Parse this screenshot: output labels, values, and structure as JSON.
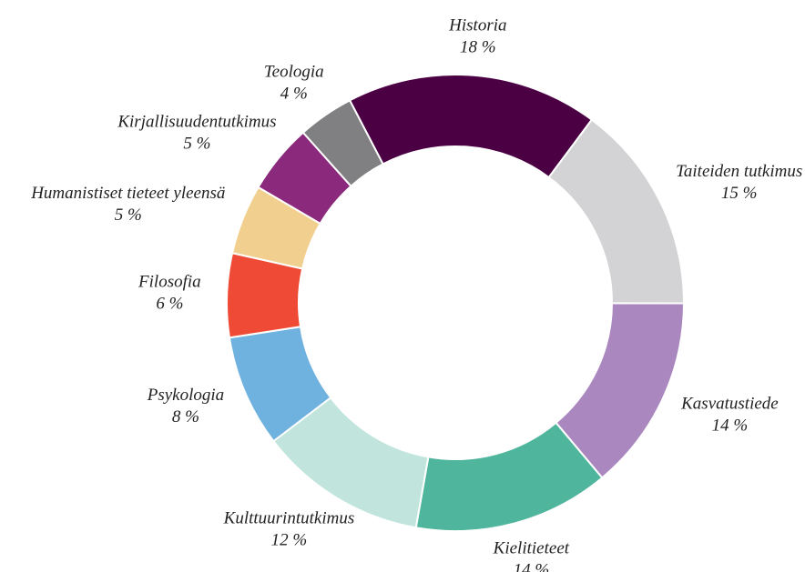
{
  "chart_data": {
    "type": "donut",
    "categories": [
      "Historia",
      "Taiteiden tutkimus",
      "Kasvatustiede",
      "Kielitieteet",
      "Kulttuurintutkimus",
      "Psykologia",
      "Filosofia",
      "Humanistiset tieteet yleensä",
      "Kirjallisuudentutkimus",
      "Teologia"
    ],
    "values": [
      18,
      15,
      14,
      14,
      12,
      8,
      6,
      5,
      5,
      4
    ],
    "value_labels": [
      "18 %",
      "15 %",
      "14 %",
      "14 %",
      "12 %",
      "8 %",
      "6 %",
      "5 %",
      "5 %",
      "4 %"
    ],
    "colors": [
      "#4b0044",
      "#d3d3d5",
      "#ab87c0",
      "#4fb59c",
      "#c1e5dd",
      "#70b2df",
      "#ef4a35",
      "#f1d08f",
      "#8b2a7d",
      "#808083"
    ]
  }
}
